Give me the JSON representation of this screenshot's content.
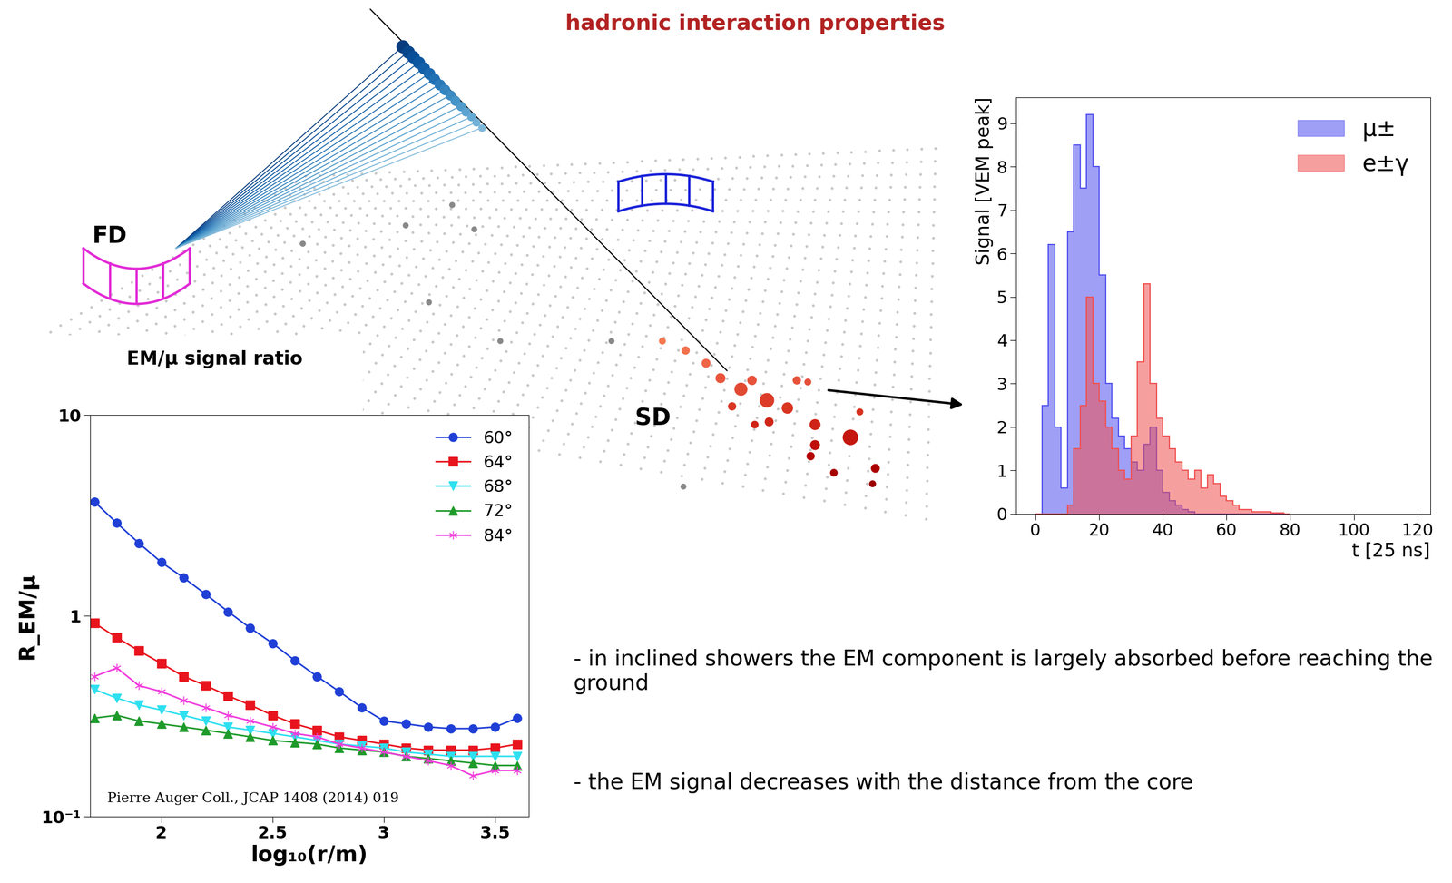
{
  "title": "hadronic interaction properties",
  "labels": {
    "fd": "FD",
    "sd": "SD"
  },
  "notes": [
    "- in inclined showers the EM component is largely absorbed before reaching the ground",
    "- the EM signal decreases with the distance from the core"
  ],
  "chart_data": [
    {
      "type": "line",
      "title": "EM/μ signal ratio",
      "x_label": "log₁₀(r/m)",
      "y_label": "R_EM/μ",
      "annotations": [
        "Pierre Auger Coll., JCAP 1408 (2014) 019"
      ],
      "log": "y",
      "legend": "upper right",
      "grid": false,
      "x": [
        1.7,
        1.8,
        1.9,
        2.0,
        2.1,
        2.2,
        2.3,
        2.4,
        2.5,
        2.6,
        2.7,
        2.8,
        2.9,
        3.0,
        3.1,
        3.2,
        3.3,
        3.4,
        3.5,
        3.6
      ],
      "xlim": [
        1.68,
        3.65
      ],
      "xticks": [
        2,
        2.5,
        3,
        3.5
      ],
      "ylim": [
        0.1,
        10
      ],
      "yticks": [
        {
          "value": 0.1,
          "label": "10⁻¹"
        },
        1,
        10
      ],
      "series": [
        {
          "name": "60°",
          "color": "#1f3fd6",
          "marker": "circle",
          "line_style": "solid",
          "values": [
            3.7,
            2.9,
            2.3,
            1.85,
            1.55,
            1.28,
            1.05,
            0.87,
            0.73,
            0.6,
            0.5,
            0.42,
            0.35,
            0.3,
            0.29,
            0.28,
            0.275,
            0.275,
            0.28,
            0.31
          ]
        },
        {
          "name": "64°",
          "color": "#e8141e",
          "marker": "square",
          "line_style": "solid",
          "values": [
            0.92,
            0.78,
            0.67,
            0.58,
            0.5,
            0.45,
            0.4,
            0.36,
            0.32,
            0.29,
            0.27,
            0.25,
            0.24,
            0.23,
            0.22,
            0.215,
            0.215,
            0.215,
            0.22,
            0.23
          ]
        },
        {
          "name": "68°",
          "color": "#2ee0f0",
          "marker": "triangle_down",
          "line_style": "solid",
          "values": [
            0.43,
            0.39,
            0.36,
            0.34,
            0.32,
            0.3,
            0.28,
            0.27,
            0.26,
            0.25,
            0.24,
            0.23,
            0.225,
            0.22,
            0.21,
            0.205,
            0.2,
            0.2,
            0.2,
            0.2
          ]
        },
        {
          "name": "72°",
          "color": "#1e9a2a",
          "marker": "triangle_up",
          "line_style": "solid",
          "values": [
            0.31,
            0.32,
            0.3,
            0.29,
            0.28,
            0.27,
            0.26,
            0.25,
            0.24,
            0.235,
            0.23,
            0.22,
            0.215,
            0.21,
            0.2,
            0.195,
            0.19,
            0.185,
            0.18,
            0.18
          ]
        },
        {
          "name": "84°",
          "color": "#f03cdc",
          "marker": "asterisk",
          "line_style": "solid",
          "values": [
            0.5,
            0.55,
            0.45,
            0.42,
            0.38,
            0.35,
            0.32,
            0.3,
            0.28,
            0.26,
            0.25,
            0.23,
            0.22,
            0.21,
            0.2,
            0.19,
            0.18,
            0.16,
            0.17,
            0.17
          ]
        }
      ]
    },
    {
      "type": "histogram",
      "x_label": "t [25 ns]",
      "y_label": "Signal [VEM peak]",
      "legend": "upper right",
      "grid": false,
      "bins": [
        0,
        2,
        4,
        6,
        8,
        10,
        12,
        14,
        16,
        18,
        20,
        22,
        24,
        26,
        28,
        30,
        32,
        34,
        36,
        38,
        40,
        42,
        44,
        46,
        48,
        50,
        52,
        54,
        56,
        58,
        60,
        62,
        64,
        66,
        68,
        70,
        72,
        74,
        76,
        78,
        80
      ],
      "xlim": [
        -6,
        124
      ],
      "xticks": [
        0,
        20,
        40,
        60,
        80,
        100,
        120
      ],
      "ylim": [
        0,
        9.6
      ],
      "yticks": [
        0,
        1,
        2,
        3,
        4,
        5,
        6,
        7,
        8,
        9
      ],
      "series": [
        {
          "name": "μ±",
          "color": "#5050f0",
          "values": [
            0,
            2.5,
            6.2,
            2.0,
            0.6,
            6.5,
            8.5,
            7.5,
            9.2,
            8.0,
            5.5,
            3.0,
            2.2,
            1.8,
            1.5,
            1.2,
            1.0,
            1.6,
            2.0,
            1.0,
            0.5,
            0.3,
            0.2,
            0.1,
            0.05,
            0,
            0,
            0,
            0,
            0,
            0,
            0,
            0,
            0,
            0,
            0,
            0,
            0,
            0,
            0
          ]
        },
        {
          "name": "e±γ",
          "color": "#f05050",
          "values": [
            0,
            0,
            0,
            0,
            0,
            0.2,
            1.5,
            2.5,
            5.0,
            3.0,
            2.6,
            2.0,
            1.5,
            1.0,
            0.8,
            1.8,
            3.5,
            5.3,
            3.0,
            2.2,
            1.8,
            1.5,
            1.2,
            1.0,
            0.8,
            1.0,
            0.6,
            0.9,
            0.7,
            0.4,
            0.3,
            0.2,
            0.1,
            0.1,
            0.05,
            0.05,
            0.05,
            0.02,
            0.02,
            0
          ]
        }
      ]
    }
  ]
}
